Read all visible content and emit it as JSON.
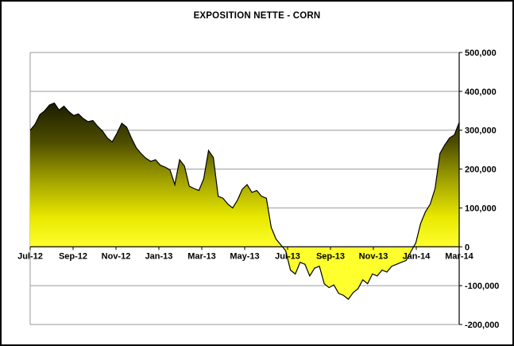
{
  "chart_data": {
    "type": "area",
    "title": "EXPOSITION NETTE - CORN",
    "x_tick_labels": [
      "Jul-12",
      "Sep-12",
      "Nov-12",
      "Jan-13",
      "Mar-13",
      "May-13",
      "Jul-13",
      "Sep-13",
      "Nov-13",
      "Jan-14",
      "Mar-14"
    ],
    "y_tick_labels": [
      "500,000",
      "400,000",
      "300,000",
      "200,000",
      "100,000",
      "0",
      "-100,000",
      "-200,000"
    ],
    "y_ticks": [
      500000,
      400000,
      300000,
      200000,
      100000,
      0,
      -100000,
      -200000
    ],
    "ylim": [
      -200000,
      500000
    ],
    "grid": true,
    "legend": "none",
    "y_axis_side": "right",
    "line_color": "#000000",
    "axis_color": "#000000",
    "grid_color": "#9a9a9a",
    "fill_gradient": [
      "#141400",
      "#4d4d00",
      "#a0a000",
      "#e8e800",
      "#ffff2e"
    ],
    "values": [
      300000,
      315000,
      340000,
      350000,
      365000,
      370000,
      352000,
      362000,
      348000,
      338000,
      342000,
      330000,
      322000,
      325000,
      310000,
      298000,
      280000,
      270000,
      292000,
      318000,
      308000,
      280000,
      255000,
      240000,
      228000,
      220000,
      224000,
      210000,
      205000,
      198000,
      160000,
      224000,
      208000,
      156000,
      150000,
      145000,
      175000,
      248000,
      230000,
      130000,
      125000,
      110000,
      100000,
      120000,
      148000,
      160000,
      140000,
      145000,
      130000,
      125000,
      50000,
      20000,
      5000,
      -10000,
      -60000,
      -70000,
      -40000,
      -45000,
      -75000,
      -55000,
      -50000,
      -95000,
      -105000,
      -98000,
      -120000,
      -125000,
      -135000,
      -118000,
      -108000,
      -85000,
      -95000,
      -70000,
      -75000,
      -60000,
      -65000,
      -50000,
      -45000,
      -40000,
      -35000,
      -12000,
      10000,
      60000,
      90000,
      110000,
      150000,
      240000,
      262000,
      280000,
      288000,
      320000
    ]
  }
}
